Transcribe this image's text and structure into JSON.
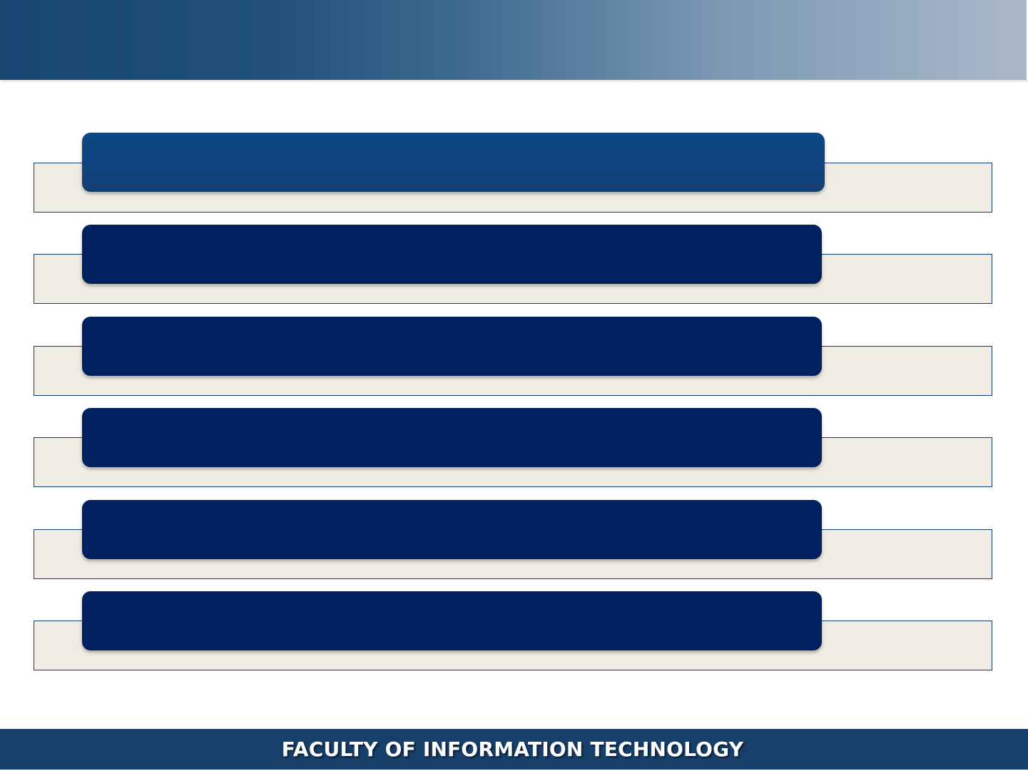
{
  "slide": {
    "items": [
      {
        "label": ""
      },
      {
        "label": ""
      },
      {
        "label": ""
      },
      {
        "label": ""
      },
      {
        "label": ""
      },
      {
        "label": ""
      }
    ],
    "footer": {
      "text": "FACULTY OF INFORMATION TECHNOLOGY"
    }
  },
  "colors": {
    "header_start": "#174673",
    "header_end": "#aab9c9",
    "pill": "#00205f",
    "pill_first": "#0e4786",
    "bar_background": "#efece4",
    "bar_border": "#143a6b",
    "footer": "#173f6a"
  }
}
